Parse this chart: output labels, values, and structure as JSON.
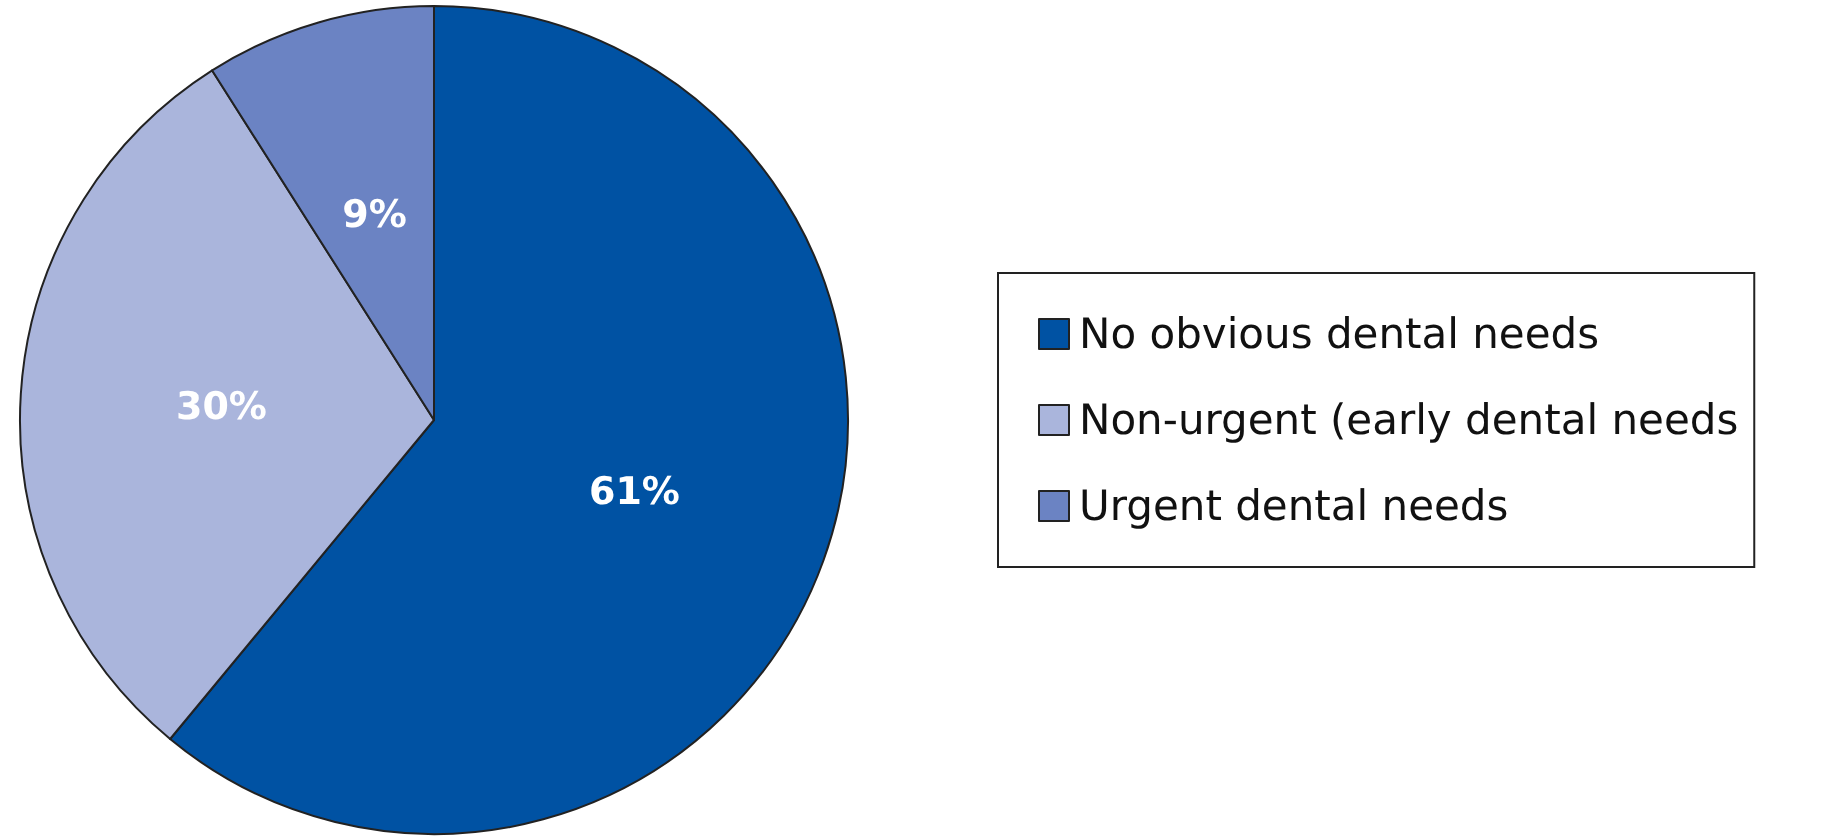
{
  "chart_data": {
    "type": "pie",
    "categories": [
      "No obvious dental needs",
      "Non-urgent (early dental needs",
      "Urgent dental needs"
    ],
    "values": [
      61,
      30,
      9
    ],
    "colors": [
      "#0052a3",
      "#aab5dc",
      "#6b83c3"
    ],
    "value_labels": [
      "61%",
      "30%",
      "9%"
    ],
    "legend": "right"
  }
}
